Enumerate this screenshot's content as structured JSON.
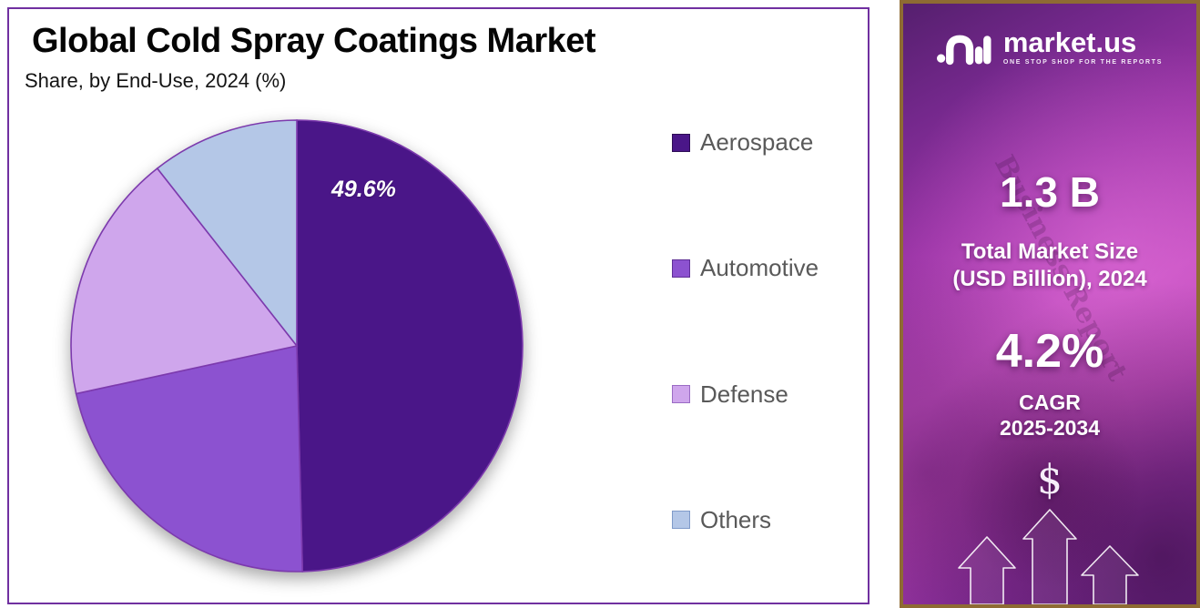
{
  "header": {
    "title": "Global Cold Spray Coatings Market",
    "subtitle": "Share, by End-Use, 2024 (%)"
  },
  "chart_data": {
    "type": "pie",
    "title": "Global Cold Spray Coatings Market",
    "subtitle": "Share, by End-Use, 2024 (%)",
    "categories": [
      "Aerospace",
      "Automotive",
      "Defense",
      "Others"
    ],
    "values": [
      49.6,
      22.0,
      17.8,
      10.6
    ],
    "colors": [
      "#4A1688",
      "#8C52D0",
      "#CFA6EC",
      "#B4C7E7"
    ],
    "marker_borders": [
      "#2E0D56",
      "#5F2F96",
      "#9A6BC4",
      "#7F9AC9"
    ],
    "slice_stroke": "#7c3aad",
    "start_angle_deg": 0,
    "direction": "clockwise",
    "legend_position": "right",
    "shown_label": {
      "category": "Aerospace",
      "text": "49.6%"
    }
  },
  "pie_label": "49.6%",
  "panel": {
    "logo_text": "market.us",
    "tagline": "ONE STOP SHOP FOR THE REPORTS",
    "watermark": "Business Report",
    "stat1_value": "1.3 B",
    "stat1_label_line1": "Total Market Size",
    "stat1_label_line2": "(USD Billion), 2024",
    "stat2_value": "4.2%",
    "stat2_label_line1": "CAGR",
    "stat2_label_line2": "2025-2034",
    "dollar_sign": "$"
  },
  "colors": {
    "chart_border": "#7030A0",
    "panel_border": "#8e6b33",
    "legend_text": "#595959"
  }
}
